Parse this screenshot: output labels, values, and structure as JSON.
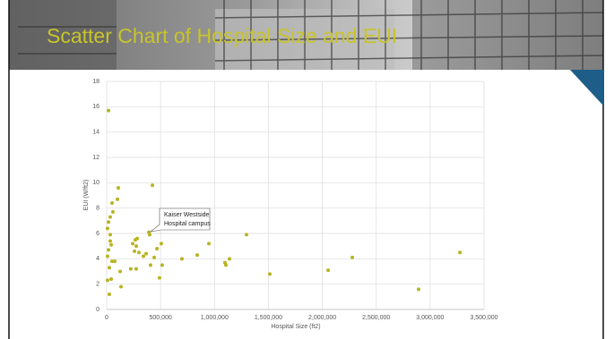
{
  "chart_data": {
    "type": "scatter",
    "title": "Scatter Chart of Hospital Size and EUI",
    "x_label": "Hospital Size (ft2)",
    "y_label": "EUI (W/ft2)",
    "annotation": [
      "Kaiser Westside",
      "Hospital campus"
    ],
    "color": "#b8b422",
    "grid": true,
    "xlim": [
      0,
      3500000
    ],
    "xticks": [
      0,
      {
        "value": 500000,
        "label": "500,000"
      },
      {
        "value": 1000000,
        "label": "1,000,000"
      },
      {
        "value": 1500000,
        "label": "1,500,000"
      },
      {
        "value": 2000000,
        "label": "2,000,000"
      },
      {
        "value": 2500000,
        "label": "2,500,000"
      },
      {
        "value": 3000000,
        "label": "3,000,000"
      },
      {
        "value": 3500000,
        "label": "3,500,000"
      }
    ],
    "ylim": [
      0,
      18
    ],
    "yticks": [
      0,
      2,
      4,
      6,
      8,
      10,
      12,
      14,
      16,
      18
    ],
    "x": [
      17000,
      108000,
      424000,
      100000,
      50000,
      58000,
      33000,
      17000,
      8000,
      33000,
      33000,
      42000,
      17000,
      8000,
      50000,
      75000,
      25000,
      8000,
      42000,
      25000,
      133000,
      125000,
      224000,
      241000,
      266000,
      283000,
      274000,
      299000,
      258000,
      341000,
      366000,
      391000,
      399000,
      407000,
      441000,
      466000,
      507000,
      490000,
      515000,
      274000,
      698000,
      840000,
      948000,
      1097000,
      1106000,
      1139000,
      1297000,
      1513000,
      2054000,
      2278000,
      2893000,
      3276000
    ],
    "values": [
      15.7,
      9.6,
      9.8,
      8.7,
      8.4,
      7.7,
      7.3,
      6.9,
      6.4,
      5.9,
      5.4,
      5.1,
      4.7,
      4.2,
      3.8,
      3.8,
      3.3,
      2.3,
      2.4,
      1.2,
      1.8,
      3.0,
      3.2,
      5.2,
      5.5,
      5.6,
      5.0,
      4.5,
      4.6,
      4.2,
      4.4,
      6.1,
      5.9,
      3.5,
      4.1,
      4.8,
      5.2,
      2.5,
      3.5,
      3.2,
      4.0,
      4.3,
      5.2,
      3.7,
      3.5,
      4.0,
      5.9,
      2.8,
      3.1,
      4.1,
      1.6,
      4.5
    ]
  }
}
